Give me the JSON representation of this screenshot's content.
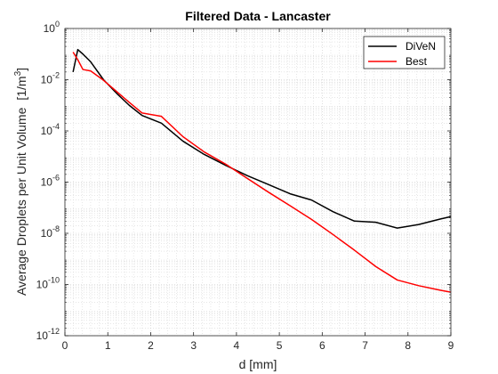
{
  "chart_data": {
    "type": "line",
    "title": "Filtered Data - Lancaster",
    "xlabel": "d [mm]",
    "ylabel": "Average Droplets per Unit Volume",
    "ylabel_unit_base": "[1/m",
    "ylabel_unit_exp": "3",
    "ylabel_unit_close": "]",
    "xlim": [
      0,
      9
    ],
    "ylim": [
      1e-12,
      1
    ],
    "yscale": "log",
    "grid": true,
    "minor_grid": true,
    "legend_position": "top-right",
    "x_ticks": [
      {
        "value": 0,
        "label": "0"
      },
      {
        "value": 1,
        "label": "1"
      },
      {
        "value": 2,
        "label": "2"
      },
      {
        "value": 3,
        "label": "3"
      },
      {
        "value": 4,
        "label": "4"
      },
      {
        "value": 5,
        "label": "5"
      },
      {
        "value": 6,
        "label": "6"
      },
      {
        "value": 7,
        "label": "7"
      },
      {
        "value": 8,
        "label": "8"
      },
      {
        "value": 9,
        "label": "9"
      }
    ],
    "y_ticks": [
      {
        "exp": 0,
        "base": "10",
        "sup": "0"
      },
      {
        "exp": -2,
        "base": "10",
        "sup": "-2"
      },
      {
        "exp": -4,
        "base": "10",
        "sup": "-4"
      },
      {
        "exp": -6,
        "base": "10",
        "sup": "-6"
      },
      {
        "exp": -8,
        "base": "10",
        "sup": "-8"
      },
      {
        "exp": -10,
        "base": "10",
        "sup": "-10"
      },
      {
        "exp": -12,
        "base": "10",
        "sup": "-12"
      }
    ],
    "series": [
      {
        "name": "DiVeN",
        "color": "#000000",
        "x": [
          0.19,
          0.3,
          0.42,
          0.6,
          0.9,
          1.2,
          1.5,
          1.8,
          2.25,
          2.75,
          3.25,
          3.75,
          4.25,
          4.75,
          5.25,
          5.75,
          6.25,
          6.75,
          7.25,
          7.75,
          8.25,
          8.75,
          9.0
        ],
        "y": [
          0.02,
          0.15,
          0.1,
          0.05,
          0.01,
          0.003,
          0.001,
          0.0004,
          0.0002,
          4e-05,
          1.2e-05,
          4.5e-06,
          1.8e-06,
          8e-07,
          3.5e-07,
          2e-07,
          7e-08,
          3e-08,
          2.7e-08,
          1.6e-08,
          2.2e-08,
          3.6e-08,
          4.5e-08
        ]
      },
      {
        "name": "Best",
        "color": "#ff0000",
        "x": [
          0.19,
          0.3,
          0.42,
          0.6,
          0.9,
          1.2,
          1.5,
          1.8,
          2.25,
          2.75,
          3.25,
          3.75,
          4.25,
          4.75,
          5.25,
          5.75,
          6.25,
          6.75,
          7.25,
          7.75,
          8.25,
          8.75,
          9.0
        ],
        "y": [
          0.12,
          0.06,
          0.025,
          0.022,
          0.0095,
          0.0035,
          0.0013,
          0.0005,
          0.00037,
          6e-05,
          1.5e-05,
          5e-06,
          1.4e-06,
          4e-07,
          1.2e-07,
          3.5e-08,
          9e-09,
          2.2e-09,
          5e-10,
          1.5e-10,
          9e-11,
          6e-11,
          5e-11
        ]
      }
    ]
  }
}
